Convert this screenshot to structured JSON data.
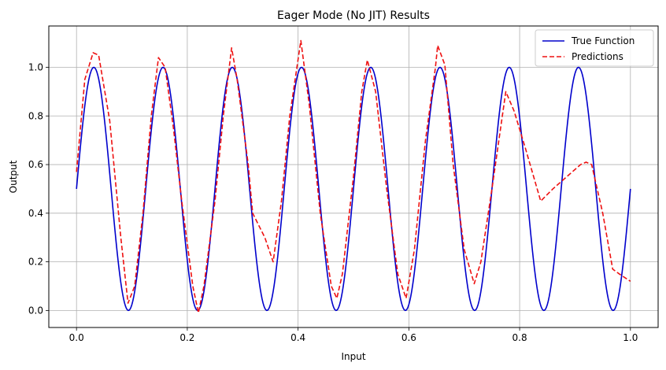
{
  "chart_data": {
    "type": "line",
    "title": "Eager Mode (No JIT) Results",
    "xlabel": "Input",
    "ylabel": "Output",
    "xlim": [
      -0.05,
      1.05
    ],
    "ylim": [
      -0.07,
      1.17
    ],
    "xticks": [
      0.0,
      0.2,
      0.4,
      0.6,
      0.8,
      1.0
    ],
    "xtick_labels": [
      "0.0",
      "0.2",
      "0.4",
      "0.6",
      "0.8",
      "1.0"
    ],
    "yticks": [
      0.0,
      0.2,
      0.4,
      0.6,
      0.8,
      1.0
    ],
    "ytick_labels": [
      "0.0",
      "0.2",
      "0.4",
      "0.6",
      "0.8",
      "1.0"
    ],
    "grid": true,
    "legend": {
      "placement": "top-right",
      "entries": [
        "True Function",
        "Predictions"
      ]
    },
    "series": [
      {
        "name": "True Function",
        "color": "#0000cc",
        "style": "solid",
        "function": "0.5 + 0.5*sin(16*pi*x)",
        "x_range": [
          0,
          1
        ],
        "samples": 600
      },
      {
        "name": "Predictions",
        "color": "#ee1111",
        "style": "dashed",
        "points": [
          [
            0.0,
            0.57
          ],
          [
            0.015,
            0.95
          ],
          [
            0.03,
            1.06
          ],
          [
            0.04,
            1.05
          ],
          [
            0.06,
            0.78
          ],
          [
            0.08,
            0.3
          ],
          [
            0.093,
            0.03
          ],
          [
            0.105,
            0.1
          ],
          [
            0.12,
            0.4
          ],
          [
            0.135,
            0.8
          ],
          [
            0.148,
            1.04
          ],
          [
            0.16,
            1.0
          ],
          [
            0.175,
            0.75
          ],
          [
            0.19,
            0.45
          ],
          [
            0.21,
            0.1
          ],
          [
            0.22,
            -0.01
          ],
          [
            0.23,
            0.1
          ],
          [
            0.25,
            0.45
          ],
          [
            0.265,
            0.8
          ],
          [
            0.28,
            1.08
          ],
          [
            0.29,
            0.95
          ],
          [
            0.31,
            0.6
          ],
          [
            0.318,
            0.4
          ],
          [
            0.34,
            0.3
          ],
          [
            0.355,
            0.2
          ],
          [
            0.37,
            0.45
          ],
          [
            0.385,
            0.8
          ],
          [
            0.405,
            1.11
          ],
          [
            0.42,
            0.85
          ],
          [
            0.44,
            0.4
          ],
          [
            0.46,
            0.1
          ],
          [
            0.47,
            0.05
          ],
          [
            0.48,
            0.15
          ],
          [
            0.5,
            0.55
          ],
          [
            0.515,
            0.9
          ],
          [
            0.525,
            1.03
          ],
          [
            0.54,
            0.9
          ],
          [
            0.56,
            0.5
          ],
          [
            0.58,
            0.15
          ],
          [
            0.595,
            0.05
          ],
          [
            0.61,
            0.25
          ],
          [
            0.63,
            0.7
          ],
          [
            0.648,
            1.0
          ],
          [
            0.652,
            1.09
          ],
          [
            0.665,
            1.01
          ],
          [
            0.68,
            0.6
          ],
          [
            0.7,
            0.25
          ],
          [
            0.718,
            0.11
          ],
          [
            0.73,
            0.2
          ],
          [
            0.75,
            0.5
          ],
          [
            0.775,
            0.9
          ],
          [
            0.79,
            0.82
          ],
          [
            0.81,
            0.67
          ],
          [
            0.838,
            0.45
          ],
          [
            0.86,
            0.5
          ],
          [
            0.88,
            0.54
          ],
          [
            0.9,
            0.58
          ],
          [
            0.91,
            0.6
          ],
          [
            0.92,
            0.61
          ],
          [
            0.93,
            0.6
          ],
          [
            0.95,
            0.4
          ],
          [
            0.968,
            0.17
          ],
          [
            0.98,
            0.15
          ],
          [
            1.0,
            0.12
          ]
        ]
      }
    ]
  }
}
